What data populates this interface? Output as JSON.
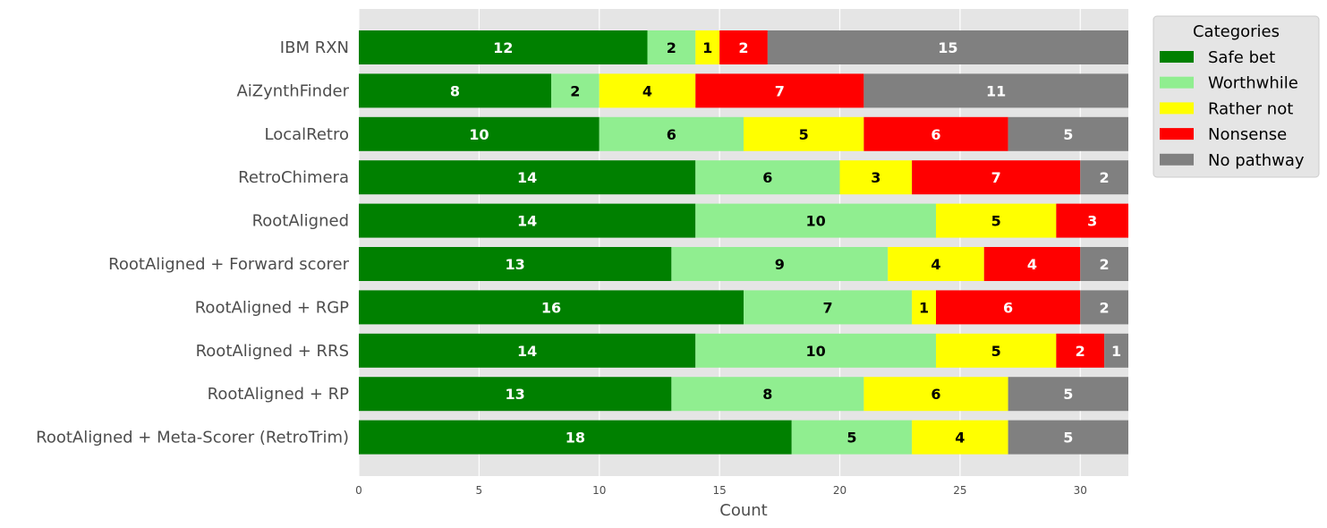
{
  "chart_data": {
    "type": "bar",
    "orientation": "horizontal",
    "stacked": true,
    "categories": [
      "IBM RXN",
      "AiZynthFinder",
      "LocalRetro",
      "RetroChimera",
      "RootAligned",
      "RootAligned + Forward scorer",
      "RootAligned + RGP",
      "RootAligned + RRS",
      "RootAligned + RP",
      "RootAligned + Meta-Scorer (RetroTrim)"
    ],
    "series": [
      {
        "name": "Safe bet",
        "color": "#008000",
        "label_color": "#ffffff",
        "values": [
          12,
          8,
          10,
          14,
          14,
          13,
          16,
          14,
          13,
          18
        ]
      },
      {
        "name": "Worthwhile",
        "color": "#90ee90",
        "label_color": "#000000",
        "values": [
          2,
          2,
          6,
          6,
          10,
          9,
          7,
          10,
          8,
          5
        ]
      },
      {
        "name": "Rather not",
        "color": "#ffff00",
        "label_color": "#000000",
        "values": [
          1,
          4,
          5,
          3,
          5,
          4,
          1,
          5,
          6,
          4
        ]
      },
      {
        "name": "Nonsense",
        "color": "#ff0000",
        "label_color": "#ffffff",
        "values": [
          2,
          7,
          6,
          7,
          3,
          4,
          6,
          2,
          0,
          0
        ]
      },
      {
        "name": "No pathway",
        "color": "#808080",
        "label_color": "#ffffff",
        "values": [
          15,
          11,
          5,
          2,
          0,
          2,
          2,
          1,
          5,
          5
        ]
      }
    ],
    "xlabel": "Count",
    "ylabel": "",
    "xlim": [
      0,
      32
    ],
    "xticks": [
      0,
      5,
      10,
      15,
      20,
      25,
      30
    ],
    "grid": true,
    "legend": {
      "title": "Categories",
      "placement": "outside-top-right"
    }
  }
}
